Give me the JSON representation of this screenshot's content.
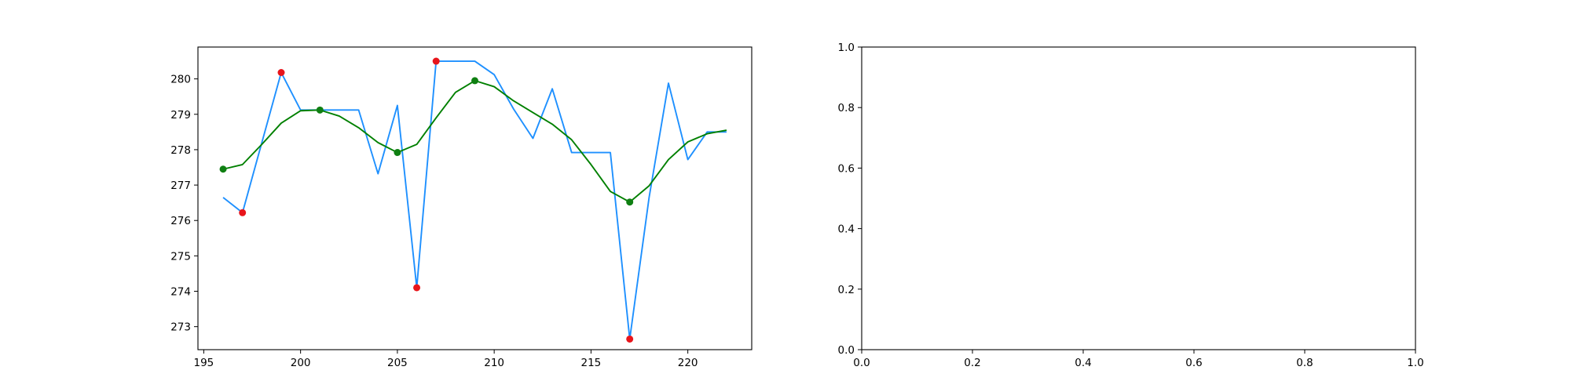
{
  "colors": {
    "raw_line": "#1e90ff",
    "smooth_line": "#008000",
    "raw_marker": "#e8151b",
    "smooth_marker": "#0f7f12",
    "axes": "#000000",
    "background": "#ffffff"
  },
  "chart_data": [
    {
      "type": "line",
      "title": "",
      "xlabel": "",
      "ylabel": "",
      "xlim": [
        194.7,
        223.3
      ],
      "ylim": [
        272.35,
        280.9
      ],
      "grid": false,
      "xticks": [
        195,
        200,
        205,
        210,
        215,
        220
      ],
      "yticks": [
        273,
        274,
        275,
        276,
        277,
        278,
        279,
        280
      ],
      "series": [
        {
          "role": "raw",
          "x": [
            196,
            197,
            198,
            199,
            200,
            201,
            202,
            203,
            204,
            205,
            206,
            207,
            208,
            209,
            210,
            211,
            212,
            213,
            214,
            215,
            216,
            217,
            218,
            219,
            220,
            221,
            222
          ],
          "values": [
            276.65,
            276.22,
            278.2,
            280.18,
            279.12,
            279.12,
            279.12,
            279.12,
            277.32,
            279.25,
            274.1,
            280.5,
            280.5,
            280.5,
            280.12,
            279.15,
            278.32,
            279.72,
            277.92,
            277.92,
            277.92,
            272.65,
            276.65,
            279.88,
            277.72,
            278.5,
            278.5
          ]
        },
        {
          "role": "smoothed",
          "x": [
            196,
            197,
            198,
            199,
            200,
            201,
            202,
            203,
            204,
            205,
            206,
            207,
            208,
            209,
            210,
            211,
            212,
            213,
            214,
            215,
            216,
            217,
            218,
            219,
            220,
            221,
            222
          ],
          "values": [
            277.45,
            277.58,
            278.15,
            278.75,
            279.1,
            279.12,
            278.95,
            278.62,
            278.2,
            277.92,
            278.15,
            278.9,
            279.62,
            279.95,
            279.78,
            279.38,
            279.05,
            278.72,
            278.28,
            277.58,
            276.82,
            276.52,
            276.98,
            277.72,
            278.22,
            278.45,
            278.55
          ]
        },
        {
          "role": "outlier-markers",
          "x": [
            197,
            199,
            206,
            207,
            217
          ],
          "values": [
            276.22,
            280.18,
            274.1,
            280.5,
            272.65
          ]
        },
        {
          "role": "extrema-markers",
          "x": [
            196,
            201,
            205,
            209,
            217
          ],
          "values": [
            277.45,
            279.12,
            277.92,
            279.95,
            276.52
          ]
        }
      ]
    },
    {
      "type": "line",
      "title": "",
      "xlabel": "",
      "ylabel": "",
      "xlim": [
        0,
        1
      ],
      "ylim": [
        0,
        1
      ],
      "grid": false,
      "xticks": [
        0.0,
        0.2,
        0.4,
        0.6,
        0.8,
        1.0
      ],
      "yticks": [
        0.0,
        0.2,
        0.4,
        0.6,
        0.8,
        1.0
      ],
      "series": []
    }
  ]
}
